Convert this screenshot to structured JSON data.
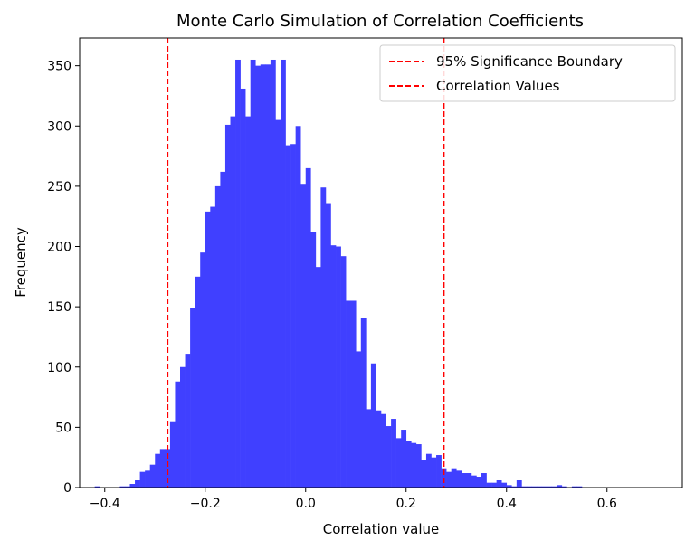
{
  "chart_data": {
    "type": "bar",
    "title": "Monte Carlo Simulation of Correlation Coefficients",
    "xlabel": "Correlation value",
    "ylabel": "Frequency",
    "xlim": [
      -0.45,
      0.75
    ],
    "ylim": [
      0,
      373
    ],
    "x_ticks": [
      -0.4,
      -0.2,
      0.0,
      0.2,
      0.4,
      0.6
    ],
    "x_tick_labels": [
      "−0.4",
      "−0.2",
      "0.0",
      "0.2",
      "0.4",
      "0.6"
    ],
    "y_ticks": [
      0,
      50,
      100,
      150,
      200,
      250,
      300,
      350
    ],
    "y_tick_labels": [
      "0",
      "50",
      "100",
      "150",
      "200",
      "250",
      "300",
      "350"
    ],
    "bar_color": "#4040ff",
    "line_color": "#ff0000",
    "bin_start": -0.42,
    "bin_width": 0.01,
    "values": [
      1,
      0,
      0,
      0,
      0,
      1,
      1,
      3,
      6,
      13,
      14,
      19,
      28,
      32,
      32,
      55,
      88,
      100,
      111,
      149,
      175,
      195,
      229,
      233,
      250,
      262,
      301,
      308,
      355,
      331,
      308,
      355,
      350,
      351,
      351,
      355,
      305,
      355,
      284,
      285,
      300,
      252,
      265,
      212,
      183,
      249,
      236,
      201,
      200,
      192,
      155,
      155,
      113,
      141,
      65,
      103,
      64,
      61,
      51,
      57,
      41,
      48,
      39,
      37,
      36,
      23,
      28,
      25,
      27,
      16,
      13,
      16,
      14,
      12,
      12,
      10,
      9,
      12,
      4,
      4,
      6,
      4,
      2,
      1,
      6,
      1,
      1,
      1,
      1,
      1,
      1,
      1,
      2,
      1,
      0,
      1,
      1
    ],
    "vlines": [
      -0.275,
      0.275
    ],
    "legend": {
      "position": "top-right",
      "entries": [
        {
          "label": "95% Significance Boundary",
          "style": "dashed",
          "color": "#ff0000"
        },
        {
          "label": "Correlation Values",
          "style": "dashed",
          "color": "#ff0000"
        }
      ]
    },
    "grid": false
  }
}
